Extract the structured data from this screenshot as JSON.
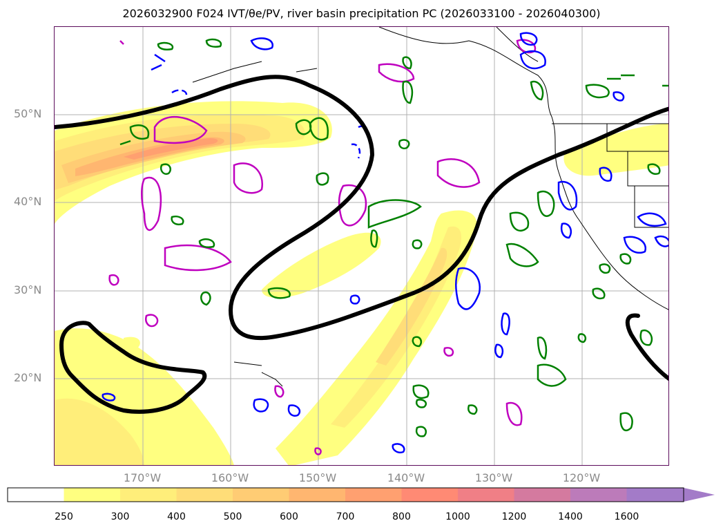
{
  "title": "2026032900 F024 IVT/θe/PV, river basin precipitation PC (2026033100 - 2026040300)",
  "lat_labels": [
    "50°N",
    "40°N",
    "30°N",
    "20°N"
  ],
  "lon_labels": [
    "170°W",
    "160°W",
    "150°W",
    "140°W",
    "130°W",
    "120°W"
  ],
  "colorbar": {
    "ticks": [
      "250",
      "300",
      "400",
      "500",
      "600",
      "700",
      "800",
      "1000",
      "1200",
      "1400",
      "1600"
    ],
    "colors": [
      "#ffff80",
      "#ffee7a",
      "#ffdd78",
      "#ffcc74",
      "#ffb670",
      "#ffa070",
      "#ff8a74",
      "#f07f86",
      "#d47a9f",
      "#bc7bba",
      "#a37bc8"
    ],
    "under_color": "#ffffff",
    "extend": "max"
  },
  "legend_colors": {
    "trough_line": "#000000",
    "pv_contour": "#bf00bf",
    "theta_e_contour": "#008000",
    "precip_contour": "#0000ff"
  }
}
